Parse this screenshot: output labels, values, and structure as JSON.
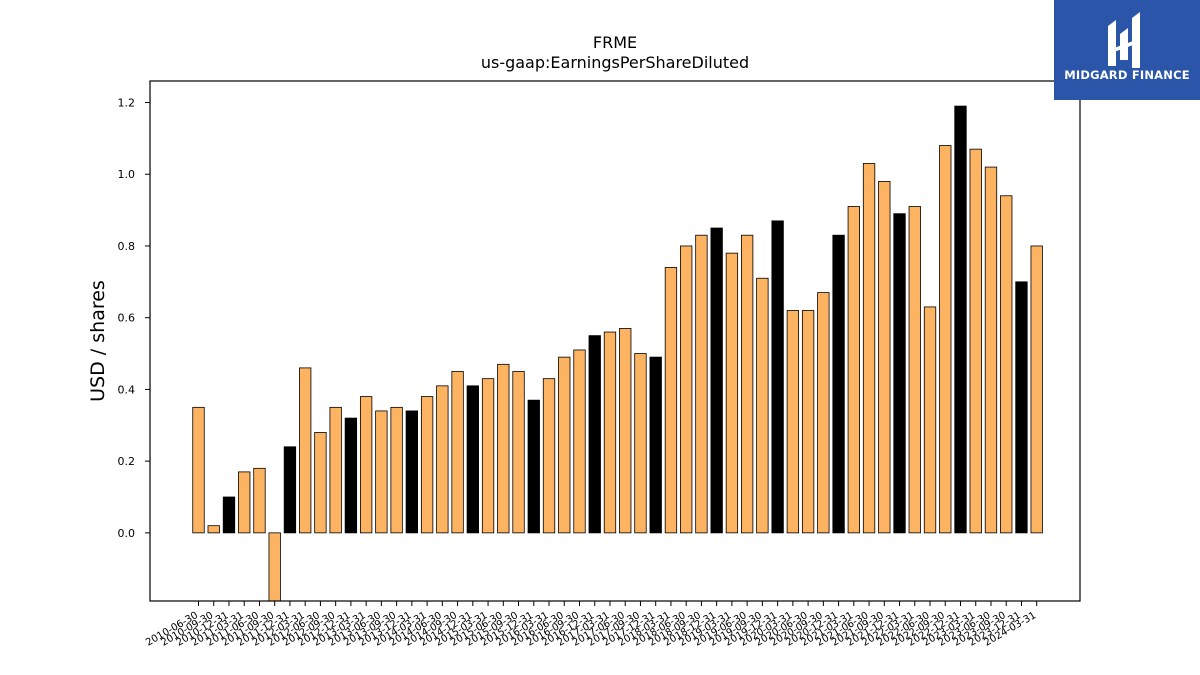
{
  "logo": {
    "text": "MIDGARD FINANCE"
  },
  "colors": {
    "bar_default": "#fdb462",
    "bar_highlight": "#000000",
    "bar_edge": "#000000",
    "logo_bg": "#2a55a8"
  },
  "chart_data": {
    "type": "bar",
    "title": "FRME",
    "subtitle": "us-gaap:EarningsPerShareDiluted",
    "xlabel": "",
    "ylabel": "USD / shares",
    "ylim": [
      -0.19,
      1.26
    ],
    "yticks": [
      0.0,
      0.2,
      0.4,
      0.6,
      0.8,
      1.0,
      1.2
    ],
    "grid": false,
    "categories": [
      "2010-06-30",
      "2010-09-30",
      "2010-12-31",
      "2011-03-31",
      "2011-06-30",
      "2011-09-30",
      "2011-12-31",
      "2012-03-31",
      "2012-06-30",
      "2012-09-30",
      "2012-12-31",
      "2013-03-31",
      "2013-06-30",
      "2013-09-30",
      "2013-12-31",
      "2014-03-31",
      "2014-06-30",
      "2014-09-30",
      "2014-12-31",
      "2015-03-31",
      "2015-06-30",
      "2015-09-30",
      "2015-12-31",
      "2016-03-31",
      "2016-06-30",
      "2016-09-30",
      "2016-12-31",
      "2017-03-31",
      "2017-06-30",
      "2017-09-30",
      "2017-12-31",
      "2018-03-31",
      "2018-06-30",
      "2018-09-30",
      "2018-12-31",
      "2019-03-31",
      "2019-06-30",
      "2019-09-30",
      "2019-12-31",
      "2020-03-31",
      "2020-06-30",
      "2020-09-30",
      "2020-12-31",
      "2021-03-31",
      "2021-06-30",
      "2021-09-30",
      "2021-12-31",
      "2022-03-31",
      "2022-06-30",
      "2022-09-30",
      "2022-12-31",
      "2023-03-31",
      "2023-06-30",
      "2023-09-30",
      "2023-12-31",
      "2024-03-31"
    ],
    "visible_tick_labels": [
      "2010-06-30",
      "2010-09-30",
      "2010-12-31",
      "2011-03-31",
      "2011-06-30",
      "2011-09-30",
      "2011-12-31",
      "2012-03-31",
      "2012-06-30",
      "2012-09-30",
      "2012-12-31",
      "2013-03-31",
      "2013-06-30",
      "2013-09-30",
      "2013-12-31",
      "2014-03-31",
      "2014-06-30",
      "2014-09-30",
      "2014-12-31",
      "2015-03-31",
      "2015-06-30",
      "2015-09-30",
      "2015-12-31",
      "2016-03-31",
      "2016-06-30",
      "2016-09-30",
      "2016-12-31",
      "2017-03-31",
      "2017-06-30",
      "2017-09-30",
      "2017-12-31",
      "2018-03-31",
      "2018-06-30",
      "2018-09-30",
      "2018-12-31",
      "2019-03-31",
      "2019-06-30",
      "2019-09-30",
      "2019-12-31",
      "2020-03-31",
      "2020-06-30",
      "2020-09-30",
      "2020-12-31",
      "2021-03-31",
      "2021-06-30",
      "2021-09-30",
      "2021-12-31",
      "2022-03-31",
      "2022-06-30",
      "2022-09-30",
      "2022-12-31",
      "2023-03-31",
      "2023-06-30",
      "2023-09-30",
      "2023-12-31",
      "2024-03-31"
    ],
    "values": [
      0.35,
      0.02,
      0.1,
      0.17,
      0.18,
      -0.19,
      0.24,
      0.46,
      0.28,
      0.35,
      0.32,
      0.38,
      0.34,
      0.35,
      0.34,
      0.38,
      0.41,
      0.45,
      0.41,
      0.43,
      0.47,
      0.45,
      0.37,
      0.43,
      0.49,
      0.51,
      0.55,
      0.56,
      0.57,
      0.5,
      0.49,
      0.74,
      0.8,
      0.83,
      0.85,
      0.78,
      0.83,
      0.71,
      0.87,
      0.62,
      0.62,
      0.67,
      0.83,
      0.91,
      1.03,
      0.98,
      0.89,
      0.91,
      0.63,
      1.08,
      1.19,
      1.07,
      1.02,
      0.94,
      0.7,
      0.8
    ],
    "highlight_black": [
      false,
      false,
      true,
      false,
      false,
      false,
      true,
      false,
      false,
      false,
      true,
      false,
      false,
      false,
      true,
      false,
      false,
      false,
      true,
      false,
      false,
      false,
      true,
      false,
      false,
      false,
      true,
      false,
      false,
      false,
      true,
      false,
      false,
      false,
      true,
      false,
      false,
      false,
      true,
      false,
      false,
      false,
      true,
      false,
      false,
      false,
      true,
      false,
      false,
      false,
      true,
      false,
      false,
      false,
      true,
      false
    ]
  }
}
